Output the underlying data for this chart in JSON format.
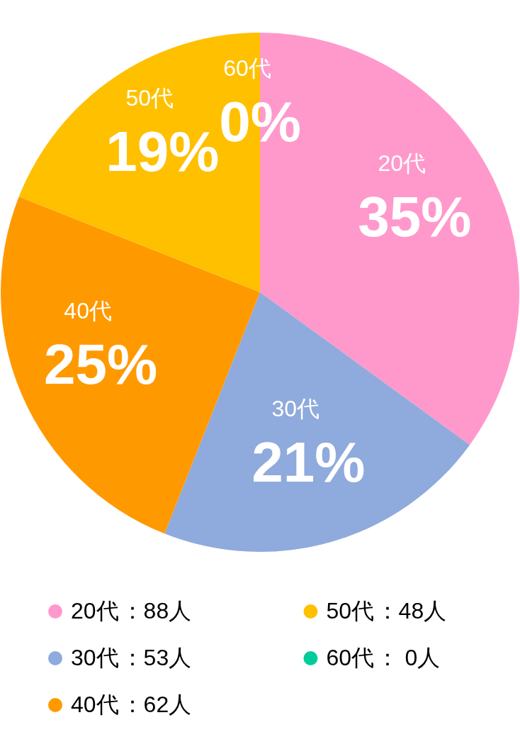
{
  "chart_data": {
    "type": "pie",
    "categories": [
      "20代",
      "30代",
      "40代",
      "50代",
      "60代"
    ],
    "values": [
      35,
      21,
      25,
      19,
      0
    ],
    "value_labels": [
      "35%",
      "21%",
      "25%",
      "19%",
      "0%"
    ],
    "colors": [
      "#ff99cc",
      "#8faadc",
      "#ff9900",
      "#ffc000",
      "#00cc99"
    ],
    "legend": "bottom",
    "annotations": [
      "：88人",
      "：53人",
      "：62人",
      "：48人",
      "： 0人"
    ]
  }
}
